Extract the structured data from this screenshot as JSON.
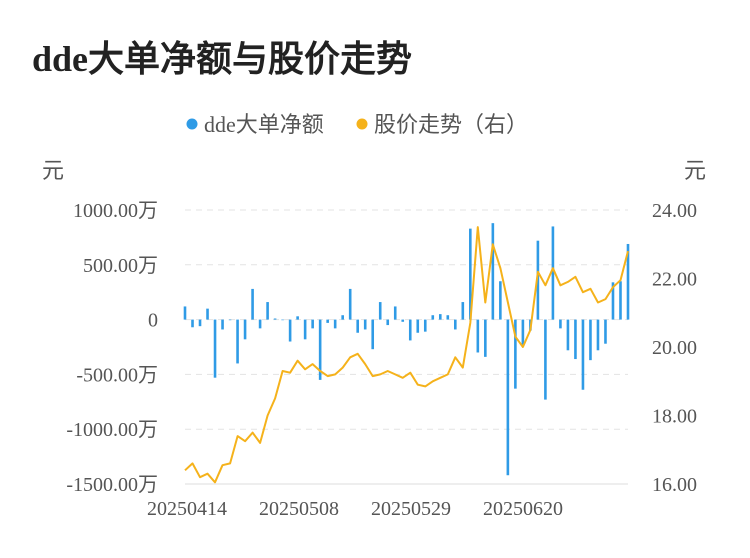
{
  "title": "dde大单净额与股价走势",
  "chart_data": {
    "type": "bar+line",
    "title": "dde大单净额与股价走势",
    "legend": {
      "position": "top-center",
      "items": [
        {
          "label": "dde大单净额",
          "color": "#2f9be6"
        },
        {
          "label": "股价走势（右）",
          "color": "#f5b21b"
        }
      ]
    },
    "left_axis": {
      "unit": "元",
      "ticks": [
        "1000.00万",
        "500.00万",
        "0",
        "-500.00万",
        "-1000.00万",
        "-1500.00万"
      ],
      "range": [
        -1500,
        1000
      ]
    },
    "right_axis": {
      "unit": "元",
      "ticks": [
        "24.00",
        "22.00",
        "20.00",
        "18.00",
        "16.00"
      ],
      "range": [
        16,
        24
      ]
    },
    "x_labels": [
      "20250414",
      "20250508",
      "20250529",
      "20250620"
    ],
    "grid": "horizontal dashed",
    "series": [
      {
        "name": "dde大单净额",
        "type": "bar",
        "color": "#2f9be6",
        "values": [
          120,
          -70,
          -60,
          100,
          -530,
          -90,
          0,
          -400,
          -180,
          280,
          -80,
          160,
          10,
          0,
          -200,
          30,
          -180,
          -80,
          -550,
          -30,
          -80,
          40,
          280,
          -120,
          -90,
          -270,
          160,
          -50,
          120,
          -20,
          -190,
          -120,
          -110,
          40,
          50,
          40,
          -90,
          160,
          830,
          -300,
          -340,
          880,
          350,
          -1420,
          -630,
          -230,
          -100,
          720,
          -730,
          850,
          -80,
          -280,
          -360,
          -640,
          -370,
          -280,
          -220,
          340,
          350,
          690
        ]
      },
      {
        "name": "股价走势（右）",
        "type": "line",
        "axis": "right",
        "color": "#f5b21b",
        "values": [
          16.4,
          16.6,
          16.2,
          16.3,
          16.05,
          16.55,
          16.6,
          17.4,
          17.25,
          17.5,
          17.2,
          18.0,
          18.5,
          19.3,
          19.25,
          19.6,
          19.35,
          19.5,
          19.3,
          19.15,
          19.2,
          19.4,
          19.7,
          19.8,
          19.5,
          19.15,
          19.2,
          19.3,
          19.2,
          19.1,
          19.25,
          18.9,
          18.85,
          19.0,
          19.1,
          19.2,
          19.7,
          19.4,
          20.7,
          23.5,
          21.3,
          23.0,
          22.3,
          21.3,
          20.3,
          20.0,
          20.5,
          22.2,
          21.8,
          22.3,
          21.8,
          21.9,
          22.05,
          21.6,
          21.7,
          21.3,
          21.4,
          21.75,
          21.95,
          22.8
        ]
      }
    ]
  }
}
